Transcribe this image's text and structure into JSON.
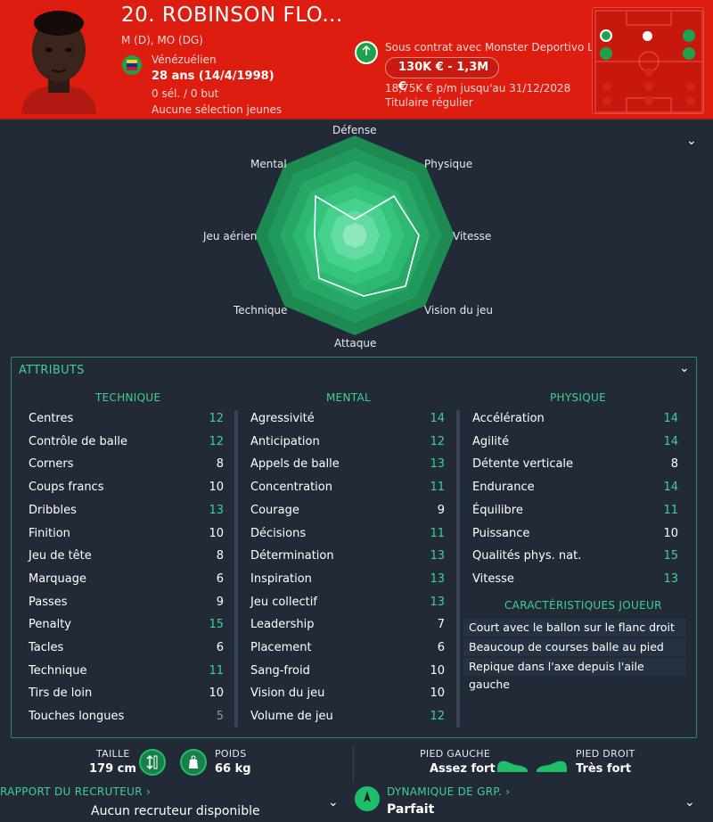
{
  "player": {
    "title": "20. ROBINSON FLO...",
    "positions": "M (D), MO (DG)",
    "nationality": "Vénézuélien",
    "age": "28 ans (14/4/1998)",
    "caps": "0 sél. / 0 but",
    "youth": "Aucune sélection jeunes"
  },
  "contract": {
    "status": "Sous contrat avec Monster Deportivo L...",
    "value": "130K € - 1,3M €",
    "wage": "18,75K € p/m jusqu'au 31/12/2028",
    "role": "Titulaire régulier"
  },
  "radar": {
    "labels": {
      "top": "Défense",
      "tr": "Physique",
      "r": "Vitesse",
      "br": "Vision du jeu",
      "b": "Attaque",
      "bl": "Technique",
      "l": "Jeu aérien",
      "tl": "Mental"
    }
  },
  "attributes": {
    "title": "ATTRIBUTS",
    "technique": {
      "title": "TECHNIQUE",
      "rows": [
        [
          "Centres",
          "12"
        ],
        [
          "Contrôle de balle",
          "12"
        ],
        [
          "Corners",
          "8"
        ],
        [
          "Coups francs",
          "10"
        ],
        [
          "Dribbles",
          "13"
        ],
        [
          "Finition",
          "10"
        ],
        [
          "Jeu de tête",
          "8"
        ],
        [
          "Marquage",
          "6"
        ],
        [
          "Passes",
          "9"
        ],
        [
          "Penalty",
          "15"
        ],
        [
          "Tacles",
          "6"
        ],
        [
          "Technique",
          "11"
        ],
        [
          "Tirs de loin",
          "10"
        ],
        [
          "Touches longues",
          "5"
        ]
      ]
    },
    "mental": {
      "title": "MENTAL",
      "rows": [
        [
          "Agressivité",
          "14"
        ],
        [
          "Anticipation",
          "12"
        ],
        [
          "Appels de balle",
          "13"
        ],
        [
          "Concentration",
          "11"
        ],
        [
          "Courage",
          "9"
        ],
        [
          "Décisions",
          "11"
        ],
        [
          "Détermination",
          "13"
        ],
        [
          "Inspiration",
          "13"
        ],
        [
          "Jeu collectif",
          "13"
        ],
        [
          "Leadership",
          "7"
        ],
        [
          "Placement",
          "6"
        ],
        [
          "Sang-froid",
          "10"
        ],
        [
          "Vision du jeu",
          "10"
        ],
        [
          "Volume de jeu",
          "12"
        ]
      ]
    },
    "physique": {
      "title": "PHYSIQUE",
      "rows": [
        [
          "Accélération",
          "14"
        ],
        [
          "Agilité",
          "14"
        ],
        [
          "Détente verticale",
          "8"
        ],
        [
          "Endurance",
          "14"
        ],
        [
          "Équilibre",
          "11"
        ],
        [
          "Puissance",
          "10"
        ],
        [
          "Qualités phys. nat.",
          "15"
        ],
        [
          "Vitesse",
          "13"
        ]
      ]
    },
    "traits_title": "CARACTÉRISTIQUES JOUEUR",
    "traits": [
      "Court avec le ballon sur le flanc droit",
      "Beaucoup de courses balle au pied",
      "Repique dans l'axe depuis l'aile gauche"
    ]
  },
  "bottom": {
    "height_label": "TAILLE",
    "height": "179 cm",
    "weight_label": "POIDS",
    "weight": "66 kg",
    "left_foot_label": "PIED GAUCHE",
    "left_foot": "Assez fort",
    "right_foot_label": "PIED DROIT",
    "right_foot": "Très fort",
    "scout_label": "RAPPORT DU RECRUTEUR ›",
    "scout": "Aucun recruteur disponible",
    "dyn_label": "DYNAMIQUE DE GRP. ›",
    "dyn": "Parfait"
  },
  "colors": {
    "header": "#dd1d10",
    "accent": "#3ed092",
    "value_high": "#3ed092",
    "value_mid": "#ffffff",
    "value_low": "#8a93a3"
  }
}
